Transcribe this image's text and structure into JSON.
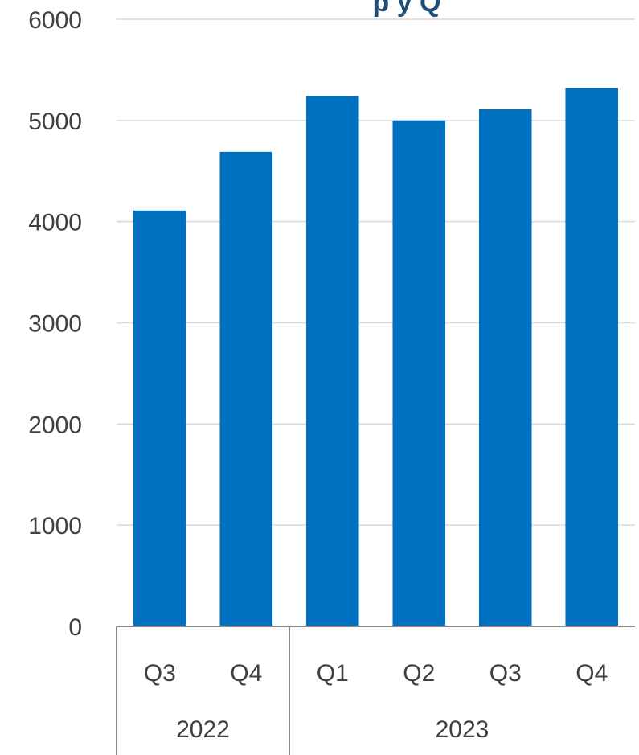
{
  "chart_data": {
    "type": "bar",
    "title": "",
    "visible_title_fragment": "p y Q",
    "xlabel": "",
    "ylabel": "",
    "ylim": [
      0,
      6000
    ],
    "yticks": [
      0,
      1000,
      2000,
      3000,
      4000,
      5000,
      6000
    ],
    "grid": true,
    "legend": "none",
    "groups": [
      {
        "label": "2022",
        "categories": [
          "Q3",
          "Q4"
        ]
      },
      {
        "label": "2023",
        "categories": [
          "Q1",
          "Q2",
          "Q3",
          "Q4"
        ]
      }
    ],
    "categories": [
      "Q3",
      "Q4",
      "Q1",
      "Q2",
      "Q3",
      "Q4"
    ],
    "values": [
      4110,
      4690,
      5240,
      5000,
      5110,
      5320
    ],
    "bar_color": "#0070c0",
    "title_color": "#1f4e79"
  }
}
